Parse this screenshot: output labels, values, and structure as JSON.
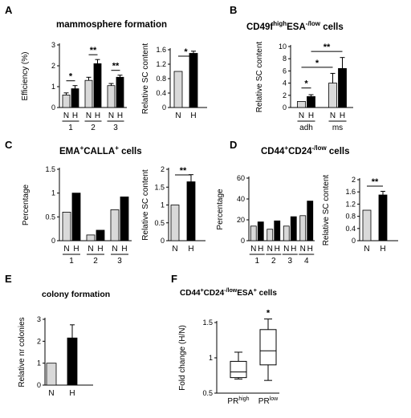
{
  "colors": {
    "light": "#d9d9d9",
    "dark": "#000000",
    "axis": "#000000"
  },
  "panels": {
    "A": {
      "label": "A",
      "title": "mammosphere formation"
    },
    "B": {
      "label": "B",
      "title_main": "CD49f",
      "title_sup1": "high",
      "title_mid": "ESA",
      "title_sup2": "-/low",
      "title_end": " cells"
    },
    "C": {
      "label": "C",
      "title_main": "EMA",
      "title_sup1": "+",
      "title_mid": "CALLA",
      "title_sup2": "+",
      "title_end": " cells"
    },
    "D": {
      "label": "D",
      "title_main": "CD44",
      "title_sup1": "+",
      "title_mid": "CD24",
      "title_sup2": "-/low",
      "title_end": " cells"
    },
    "E": {
      "label": "E",
      "title": "colony formation"
    },
    "F": {
      "label": "F",
      "title_a": "CD44",
      "title_a_sup": "+",
      "title_b": "CD24",
      "title_b_sup": "-/low",
      "title_c": "ESA",
      "title_c_sup": "+",
      "title_end": " cells"
    }
  },
  "chart_data": [
    {
      "id": "A1",
      "type": "bar",
      "ylabel": "Efficiency (%)",
      "ylim": [
        0,
        3
      ],
      "yticks": [
        0,
        1,
        2,
        3
      ],
      "categories": [
        "1",
        "2",
        "3"
      ],
      "sublabels": [
        "N",
        "H"
      ],
      "series": [
        {
          "name": "N",
          "values": [
            0.6,
            1.3,
            1.05
          ],
          "errors": [
            0.1,
            0.15,
            0.1
          ]
        },
        {
          "name": "H",
          "values": [
            0.9,
            2.1,
            1.45
          ],
          "errors": [
            0.15,
            0.2,
            0.1
          ]
        }
      ],
      "significance": [
        "*",
        "**",
        "**"
      ]
    },
    {
      "id": "A2",
      "type": "bar",
      "ylabel": "Relative SC content",
      "ylim": [
        0,
        1.6
      ],
      "yticks": [
        "0",
        "0.4",
        "0.8",
        "1.2",
        "1.6"
      ],
      "yticks_val": [
        0,
        0.4,
        0.8,
        1.2,
        1.6
      ],
      "categories": [
        "N",
        "H"
      ],
      "values": [
        1.0,
        1.5
      ],
      "errors": [
        0,
        0.06
      ],
      "significance": "*"
    },
    {
      "id": "B1",
      "type": "bar",
      "ylabel": "Relative SC content",
      "ylim": [
        0,
        10
      ],
      "yticks": [
        0,
        2,
        4,
        6,
        8,
        10
      ],
      "categories": [
        "adh",
        "ms"
      ],
      "sublabels": [
        "N",
        "H"
      ],
      "series": [
        {
          "name": "N",
          "values": [
            1.0,
            4.0
          ],
          "errors": [
            0,
            1.6
          ]
        },
        {
          "name": "H",
          "values": [
            1.8,
            6.4
          ],
          "errors": [
            0.3,
            1.8
          ]
        }
      ],
      "significance": [
        "*",
        "*",
        "**"
      ]
    },
    {
      "id": "C1",
      "type": "bar",
      "ylabel": "Percentage",
      "ylim": [
        0,
        1.5
      ],
      "yticks": [
        "0",
        "0.5",
        "1",
        "1.5"
      ],
      "yticks_val": [
        0,
        0.5,
        1,
        1.5
      ],
      "categories": [
        "1",
        "2",
        "3"
      ],
      "sublabels": [
        "N",
        "H"
      ],
      "series": [
        {
          "name": "N",
          "values": [
            0.6,
            0.12,
            0.65
          ]
        },
        {
          "name": "H",
          "values": [
            1.0,
            0.22,
            0.92
          ]
        }
      ]
    },
    {
      "id": "C2",
      "type": "bar",
      "ylabel": "Relative SC content",
      "ylim": [
        0,
        2
      ],
      "yticks": [
        0,
        0.5,
        1,
        1.5,
        2
      ],
      "categories": [
        "N",
        "H"
      ],
      "values": [
        1.0,
        1.65
      ],
      "errors": [
        0,
        0.2
      ],
      "significance": "**"
    },
    {
      "id": "D1",
      "type": "bar",
      "ylabel": "Percentage",
      "ylim": [
        0,
        60
      ],
      "yticks": [
        0,
        20,
        40,
        60
      ],
      "categories": [
        "1",
        "2",
        "3",
        "4"
      ],
      "sublabels": [
        "N",
        "H"
      ],
      "series": [
        {
          "name": "N",
          "values": [
            14,
            11,
            14,
            24
          ]
        },
        {
          "name": "H",
          "values": [
            18,
            19,
            23,
            38
          ]
        }
      ]
    },
    {
      "id": "D2",
      "type": "bar",
      "ylabel": "Relative SC content",
      "ylim": [
        0,
        2
      ],
      "yticks": [
        "0",
        "0.4",
        "0.8",
        "1.2",
        "1.6",
        "2"
      ],
      "yticks_val": [
        0,
        0.4,
        0.8,
        1.2,
        1.6,
        2
      ],
      "categories": [
        "N",
        "H"
      ],
      "values": [
        1.0,
        1.5
      ],
      "errors": [
        0,
        0.12
      ],
      "significance": "**"
    },
    {
      "id": "E1",
      "type": "bar",
      "ylabel": "Relative nr colonies",
      "ylim": [
        0,
        3
      ],
      "yticks": [
        0,
        1,
        2,
        3
      ],
      "categories": [
        "N",
        "H"
      ],
      "values": [
        1.0,
        2.15
      ],
      "errors": [
        0,
        0.6
      ]
    },
    {
      "id": "F1",
      "type": "box",
      "ylabel": "Fold change (H/N)",
      "ylim": [
        0.5,
        1.5
      ],
      "yticks": [
        "0.5",
        "1",
        "1.5"
      ],
      "yticks_val": [
        0.5,
        1,
        1.5
      ],
      "categories": [
        "PR",
        "PR"
      ],
      "category_sups": [
        "high",
        "low"
      ],
      "boxes": [
        {
          "min": 0.7,
          "q1": 0.72,
          "median": 0.8,
          "q3": 0.95,
          "max": 1.08
        },
        {
          "min": 0.68,
          "q1": 0.9,
          "median": 1.1,
          "q3": 1.4,
          "max": 1.55
        }
      ],
      "significance": [
        "",
        "*"
      ]
    }
  ]
}
